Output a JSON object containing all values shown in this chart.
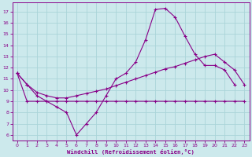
{
  "background_color": "#cce9ec",
  "grid_color": "#aad4d8",
  "line_color": "#880088",
  "xlabel": "Windchill (Refroidissement éolien,°C)",
  "ylabel_ticks": [
    6,
    7,
    8,
    9,
    10,
    11,
    12,
    13,
    14,
    15,
    16,
    17
  ],
  "xticks": [
    0,
    1,
    2,
    3,
    4,
    5,
    6,
    7,
    8,
    9,
    10,
    11,
    12,
    13,
    14,
    15,
    16,
    17,
    18,
    19,
    20,
    21,
    22,
    23
  ],
  "xlim": [
    -0.5,
    23.5
  ],
  "ylim": [
    5.5,
    17.8
  ],
  "line1_x": [
    0,
    1,
    2,
    3,
    4,
    5,
    6,
    7,
    8,
    9,
    10,
    11,
    12,
    13,
    14,
    15,
    16,
    17,
    18,
    19,
    20,
    21,
    22
  ],
  "line1_y": [
    11.5,
    10.5,
    9.5,
    9.0,
    8.5,
    8.0,
    6.0,
    7.0,
    8.0,
    9.5,
    11.0,
    11.5,
    12.5,
    14.5,
    17.2,
    17.3,
    16.5,
    14.8,
    13.2,
    12.2,
    12.2,
    11.8,
    10.5
  ],
  "line2_x": [
    0,
    1,
    2,
    3,
    4,
    5,
    6,
    7,
    8,
    9,
    10,
    11,
    12,
    13,
    14,
    15,
    16,
    17,
    18,
    19,
    20,
    21,
    22,
    23
  ],
  "line2_y": [
    11.5,
    9.0,
    9.0,
    9.0,
    9.0,
    9.0,
    9.0,
    9.0,
    9.0,
    9.0,
    9.0,
    9.0,
    9.0,
    9.0,
    9.0,
    9.0,
    9.0,
    9.0,
    9.0,
    9.0,
    9.0,
    9.0,
    9.0,
    9.0
  ],
  "line3_x": [
    0,
    1,
    2,
    3,
    4,
    5,
    6,
    7,
    8,
    9,
    10,
    11,
    12,
    13,
    14,
    15,
    16,
    17,
    18,
    19,
    20,
    21,
    22,
    23
  ],
  "line3_y": [
    11.5,
    10.5,
    9.8,
    9.5,
    9.3,
    9.3,
    9.5,
    9.7,
    9.9,
    10.1,
    10.4,
    10.7,
    11.0,
    11.3,
    11.6,
    11.9,
    12.1,
    12.4,
    12.7,
    13.0,
    13.2,
    12.5,
    11.8,
    10.5
  ]
}
